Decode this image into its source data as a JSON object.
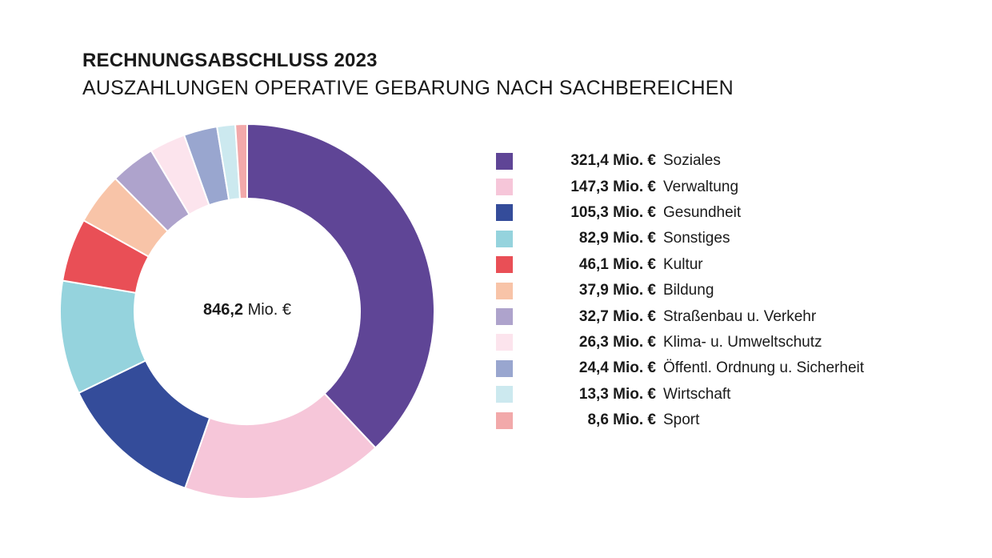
{
  "header": {
    "title": "RECHNUNGSABSCHLUSS 2023",
    "subtitle": "AUSZAHLUNGEN OPERATIVE GEBARUNG NACH SACHBEREICHEN"
  },
  "chart_data": {
    "type": "pie",
    "variant": "donut",
    "title": "RECHNUNGSABSCHLUSS 2023",
    "subtitle": "AUSZAHLUNGEN OPERATIVE GEBARUNG NACH SACHBEREICHEN",
    "unit": "Mio. €",
    "total": 846.2,
    "total_value_text": "846,2",
    "total_unit_text": "Mio. €",
    "legend_position": "right",
    "slices": [
      {
        "label": "Soziales",
        "value": 321.4,
        "value_text": "321,4 Mio. €",
        "color": "#5f4596"
      },
      {
        "label": "Verwaltung",
        "value": 147.3,
        "value_text": "147,3 Mio. €",
        "color": "#f6c6d9"
      },
      {
        "label": "Gesundheit",
        "value": 105.3,
        "value_text": "105,3 Mio. €",
        "color": "#344c9a"
      },
      {
        "label": "Sonstiges",
        "value": 82.9,
        "value_text": "82,9 Mio. €",
        "color": "#95d3dd"
      },
      {
        "label": "Kultur",
        "value": 46.1,
        "value_text": "46,1 Mio. €",
        "color": "#e94f56"
      },
      {
        "label": "Bildung",
        "value": 37.9,
        "value_text": "37,9 Mio. €",
        "color": "#f8c4a8"
      },
      {
        "label": "Straßenbau u. Verkehr",
        "value": 32.7,
        "value_text": "32,7 Mio. €",
        "color": "#aea3cc"
      },
      {
        "label": "Klima- u. Umweltschutz",
        "value": 26.3,
        "value_text": "26,3 Mio. €",
        "color": "#fce4ed"
      },
      {
        "label": "Öffentl. Ordnung u. Sicherheit",
        "value": 24.4,
        "value_text": "24,4 Mio. €",
        "color": "#99a6cf"
      },
      {
        "label": "Wirtschaft",
        "value": 13.3,
        "value_text": "13,3 Mio. €",
        "color": "#cce9ef"
      },
      {
        "label": "Sport",
        "value": 8.6,
        "value_text": "8,6 Mio. €",
        "color": "#f2a9aa"
      }
    ]
  }
}
